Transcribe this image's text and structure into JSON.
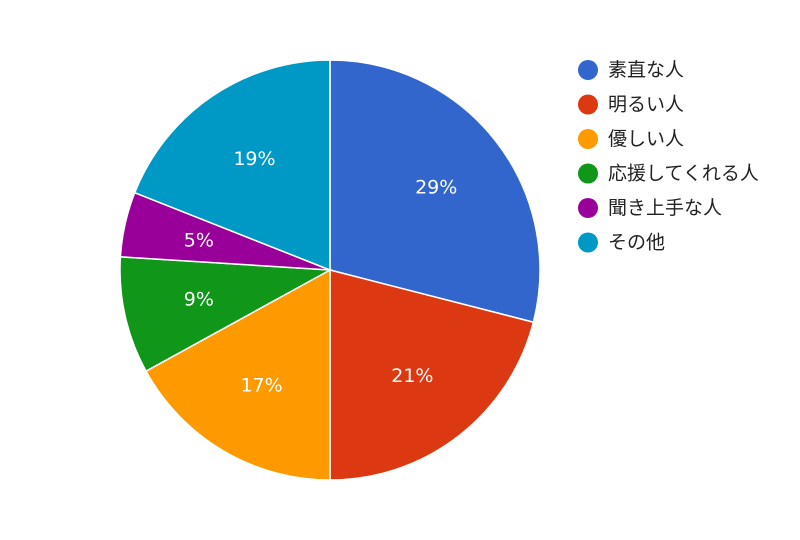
{
  "chart_data": {
    "type": "pie",
    "title": "",
    "legend_position": "right",
    "start_angle_deg": 0,
    "direction": "clockwise",
    "slices": [
      {
        "label": "素直な人",
        "value": 29,
        "value_label": "29%",
        "color": "#3366cc"
      },
      {
        "label": "明るい人",
        "value": 21,
        "value_label": "21%",
        "color": "#dc3912"
      },
      {
        "label": "優しい人",
        "value": 17,
        "value_label": "17%",
        "color": "#ff9900"
      },
      {
        "label": "応援してくれる人",
        "value": 9,
        "value_label": "9%",
        "color": "#109618"
      },
      {
        "label": "聞き上手な人",
        "value": 5,
        "value_label": "5%",
        "color": "#990099"
      },
      {
        "label": "その他",
        "value": 19,
        "value_label": "19%",
        "color": "#0099c6"
      }
    ]
  }
}
